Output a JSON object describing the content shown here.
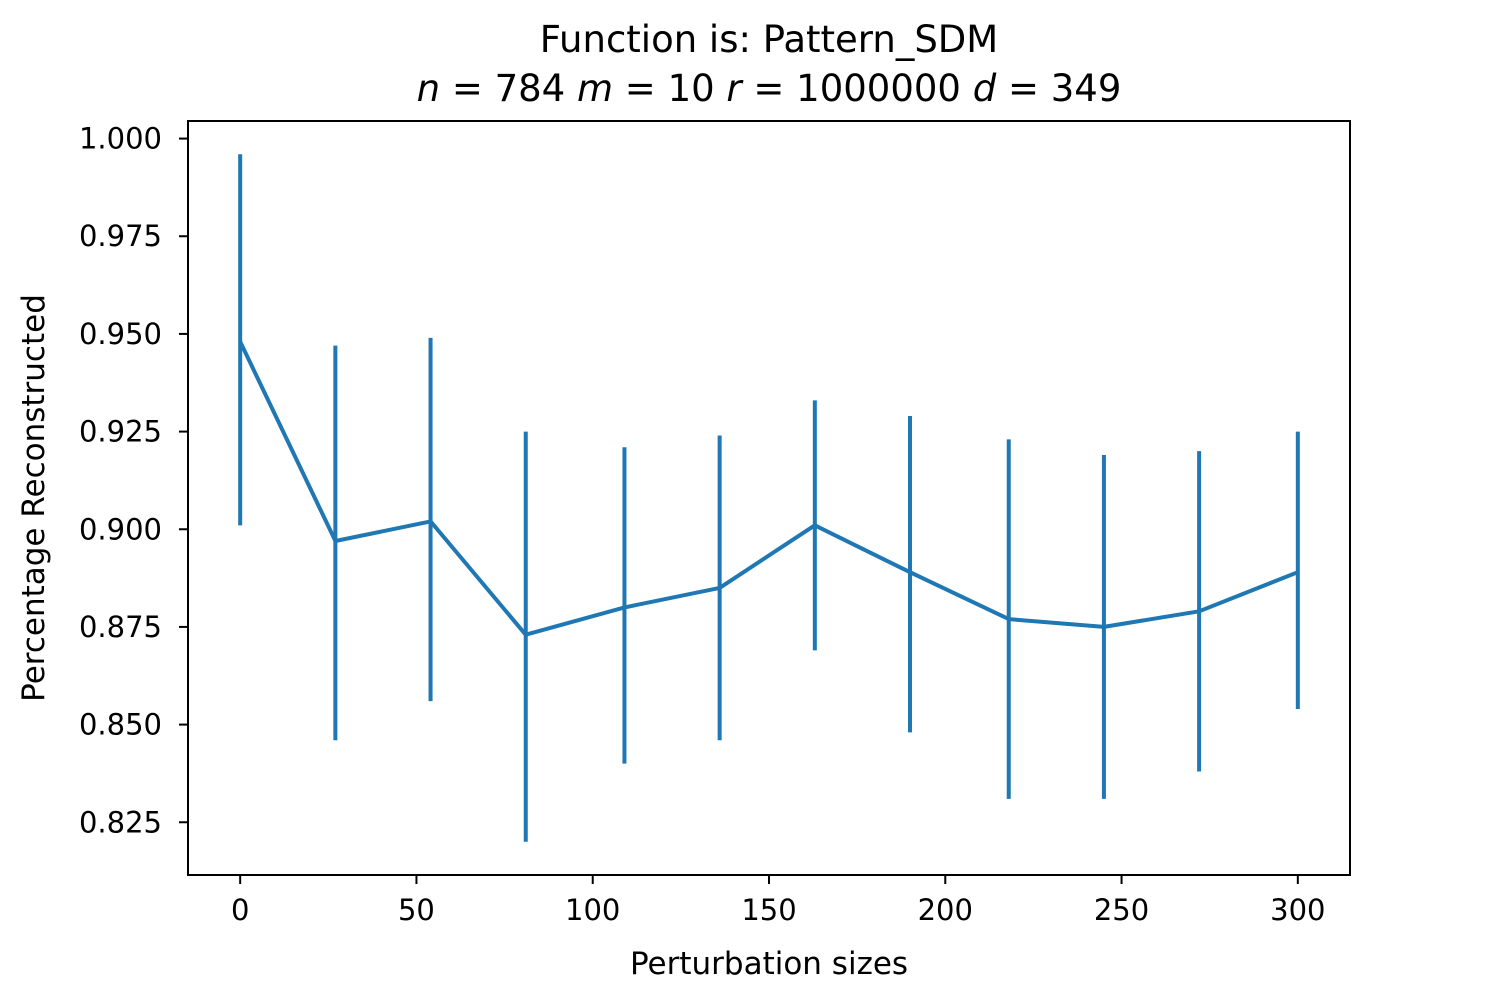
{
  "chart_data": {
    "type": "line",
    "title": "Function is: Pattern_SDM",
    "subtitle": {
      "n_var": "n",
      "n_val": "784",
      "m_var": "m",
      "m_val": "10",
      "r_var": "r",
      "r_val": "1000000",
      "d_var": "d",
      "d_val": "349"
    },
    "xlabel": "Perturbation sizes",
    "ylabel": "Percentage Reconstructed",
    "xlim": [
      -14.8,
      314.8
    ],
    "ylim": [
      0.8115,
      1.0045
    ],
    "x_ticks": [
      0,
      50,
      100,
      150,
      200,
      250,
      300
    ],
    "x_tick_labels": [
      "0",
      "50",
      "100",
      "150",
      "200",
      "250",
      "300"
    ],
    "y_ticks": [
      0.825,
      0.85,
      0.875,
      0.9,
      0.925,
      0.95,
      0.975,
      1.0
    ],
    "y_tick_labels": [
      "0.825",
      "0.850",
      "0.875",
      "0.900",
      "0.925",
      "0.950",
      "0.975",
      "1.000"
    ],
    "grid": false,
    "legend": "none",
    "series": [
      {
        "color": "#1f77b4",
        "x": [
          0,
          27,
          54,
          81,
          109,
          136,
          163,
          190,
          218,
          245,
          272,
          300
        ],
        "y": [
          0.948,
          0.897,
          0.902,
          0.873,
          0.88,
          0.885,
          0.901,
          0.889,
          0.877,
          0.875,
          0.879,
          0.889
        ],
        "err_low": [
          0.901,
          0.846,
          0.856,
          0.82,
          0.84,
          0.846,
          0.869,
          0.848,
          0.831,
          0.831,
          0.838,
          0.854
        ],
        "err_high": [
          0.996,
          0.947,
          0.949,
          0.925,
          0.921,
          0.924,
          0.933,
          0.929,
          0.923,
          0.919,
          0.92,
          0.925
        ]
      }
    ]
  }
}
